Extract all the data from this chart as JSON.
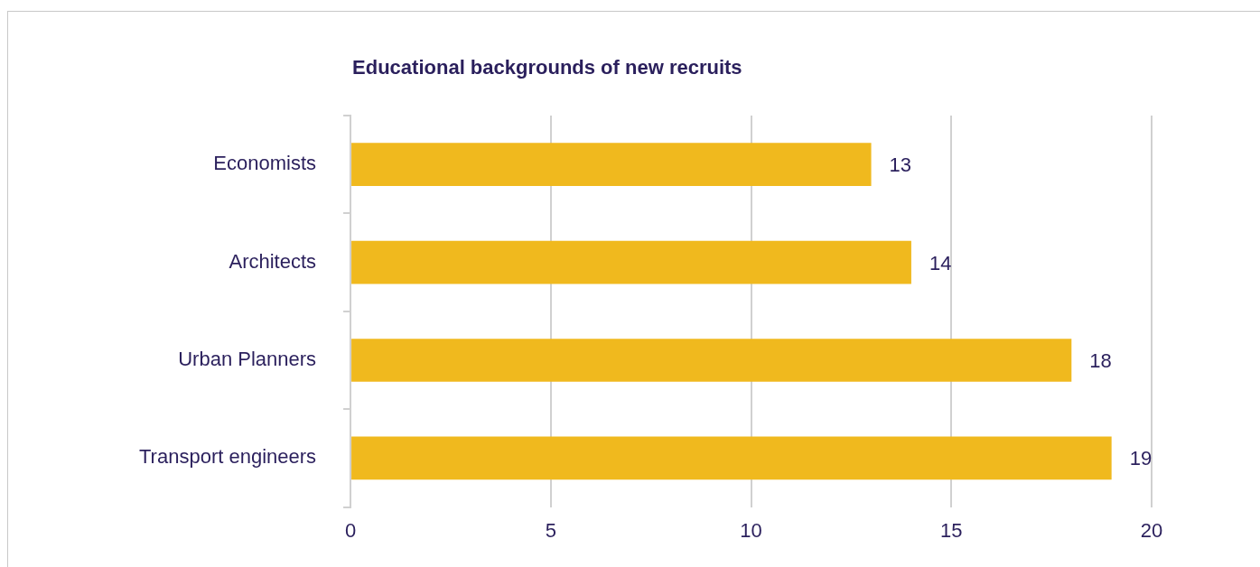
{
  "chart_data": {
    "type": "bar",
    "orientation": "horizontal",
    "title": "Educational backgrounds of new recruits",
    "categories": [
      "Economists",
      "Architects",
      "Urban Planners",
      "Transport engineers"
    ],
    "values": [
      13,
      14,
      18,
      19
    ],
    "color": "#f0b91e",
    "xlim": [
      0,
      20
    ],
    "xticks": [
      0,
      5,
      10,
      15,
      20
    ],
    "grid": "x",
    "data_labels": true,
    "legend": false
  }
}
